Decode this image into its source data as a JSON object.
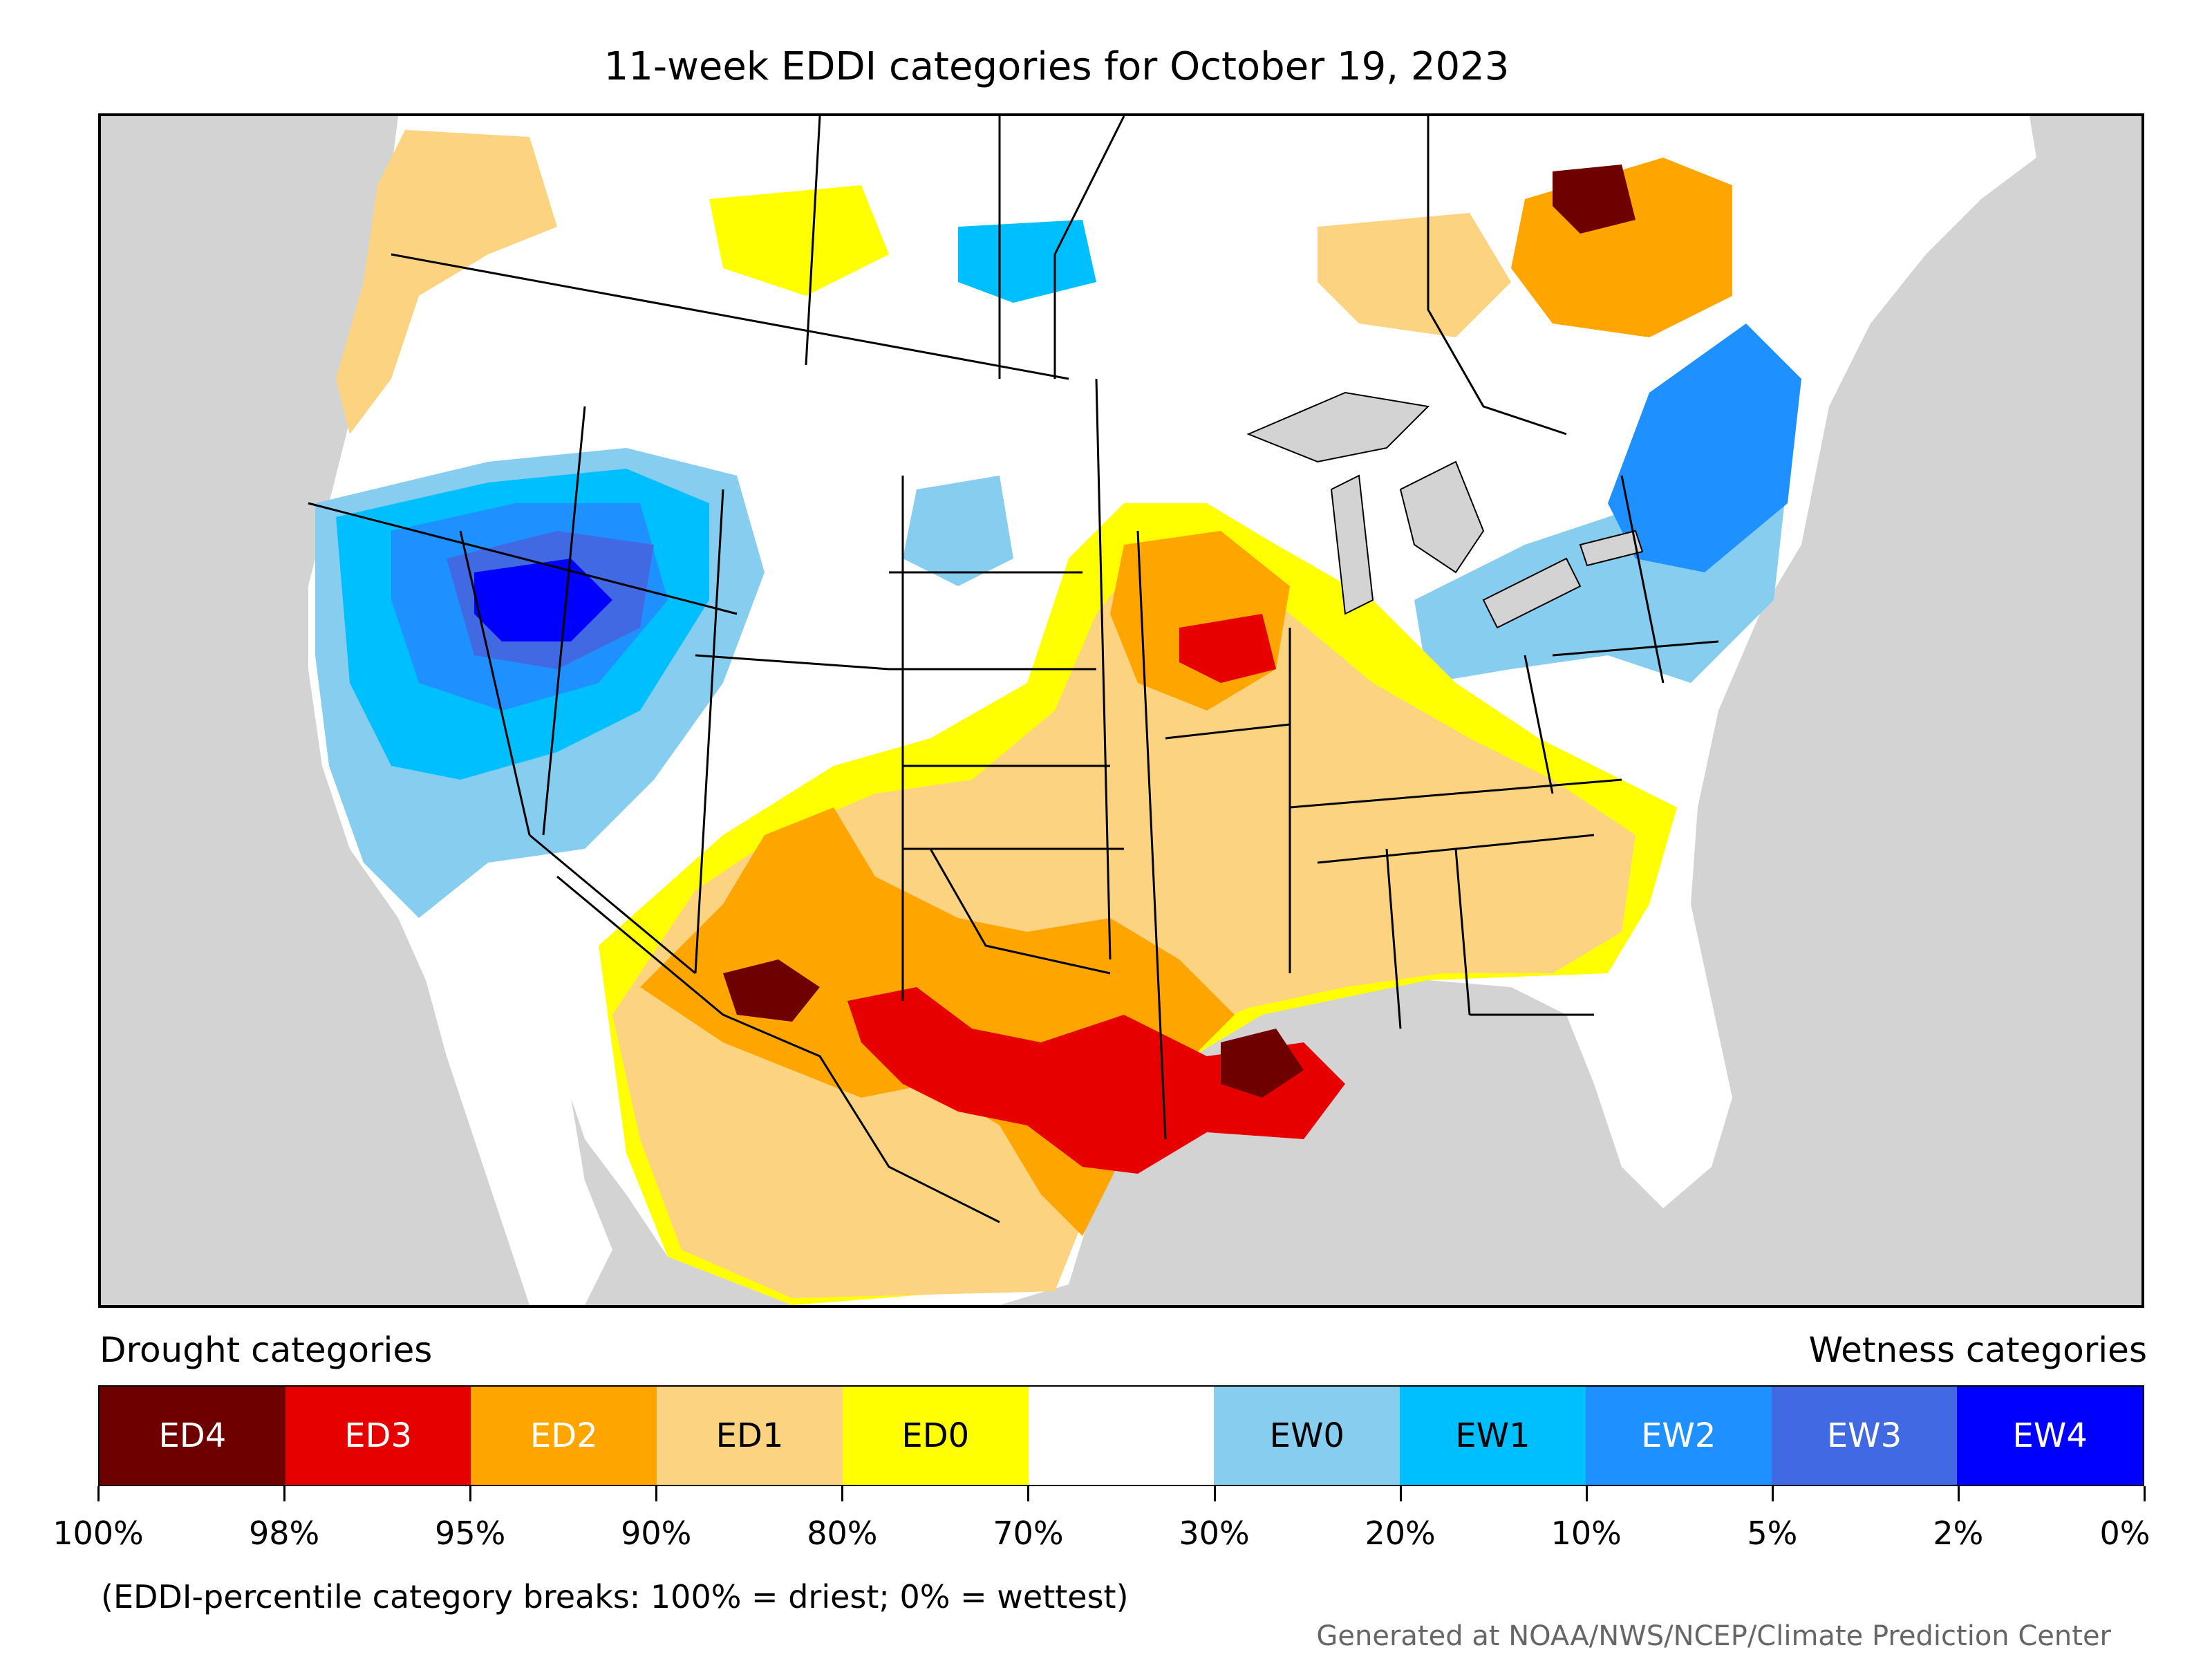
{
  "title": "11-week EDDI categories for October 19, 2023",
  "legend": {
    "left_title": "Drought categories",
    "right_title": "Wetness categories",
    "categories": [
      {
        "label": "ED4",
        "color": "#6e0000",
        "text_color": "#ffffff"
      },
      {
        "label": "ED3",
        "color": "#e60000",
        "text_color": "#ffffff"
      },
      {
        "label": "ED2",
        "color": "#ffa500",
        "text_color": "#ffffff"
      },
      {
        "label": "ED1",
        "color": "#fcd381",
        "text_color": "#000000"
      },
      {
        "label": "ED0",
        "color": "#ffff00",
        "text_color": "#000000"
      },
      {
        "label": "",
        "color": "#ffffff",
        "text_color": "#000000"
      },
      {
        "label": "EW0",
        "color": "#87cdf0",
        "text_color": "#000000"
      },
      {
        "label": "EW1",
        "color": "#00bfff",
        "text_color": "#000000"
      },
      {
        "label": "EW2",
        "color": "#1e90ff",
        "text_color": "#ffffff"
      },
      {
        "label": "EW3",
        "color": "#4169e1",
        "text_color": "#ffffff"
      },
      {
        "label": "EW4",
        "color": "#0000ff",
        "text_color": "#ffffff"
      }
    ],
    "tick_labels": [
      "100%",
      "98%",
      "95%",
      "90%",
      "80%",
      "70%",
      "30%",
      "20%",
      "10%",
      "5%",
      "2%",
      "0%"
    ]
  },
  "note": "(EDDI-percentile category breaks: 100% = driest; 0% = wettest)",
  "credit": "Generated at NOAA/NWS/NCEP/Climate Prediction Center",
  "map": {
    "ocean_color": "#d3d3d3",
    "land_color": "#ffffff",
    "border_color": "#000000"
  }
}
